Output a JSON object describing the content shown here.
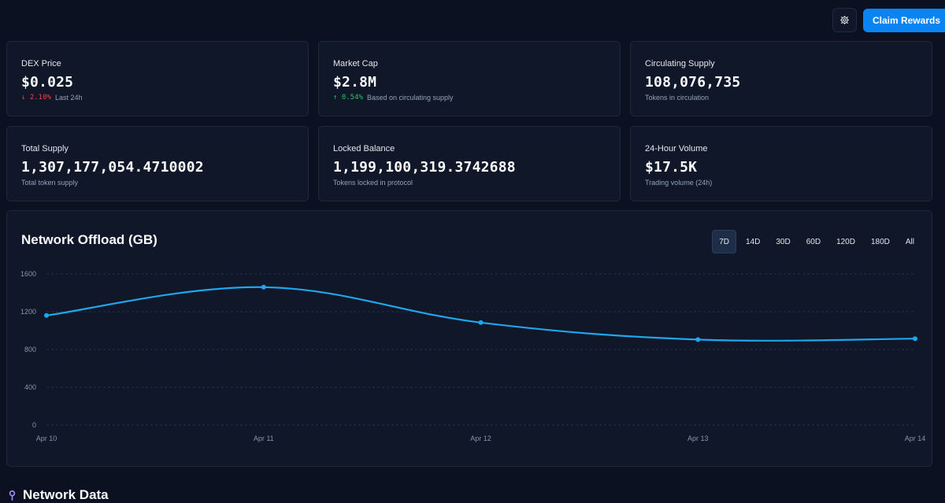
{
  "header": {
    "claim_label": "Claim Rewards",
    "settings_icon": "gear-icon",
    "accent": "#0b84f3"
  },
  "stats": [
    {
      "label": "DEX Price",
      "value": "$0.025",
      "delta": "2.10%",
      "delta_dir": "down",
      "sub": "Last 24h"
    },
    {
      "label": "Market Cap",
      "value": "$2.8M",
      "delta": "0.54%",
      "delta_dir": "up",
      "sub": "Based on circulating supply"
    },
    {
      "label": "Circulating Supply",
      "value": "108,076,735",
      "sub": "Tokens in circulation"
    },
    {
      "label": "Total Supply",
      "value": "1,307,177,054.4710002",
      "sub": "Total token supply"
    },
    {
      "label": "Locked Balance",
      "value": "1,199,100,319.3742688",
      "sub": "Tokens locked in protocol"
    },
    {
      "label": "24-Hour Volume",
      "value": "$17.5K",
      "sub": "Trading volume (24h)"
    }
  ],
  "chart_section": {
    "title": "Network Offload (GB)",
    "ranges": [
      "7D",
      "14D",
      "30D",
      "60D",
      "120D",
      "180D",
      "All"
    ],
    "active_range": "7D"
  },
  "chart_data": {
    "type": "line",
    "title": "Network Offload (GB)",
    "x": [
      "Apr 10",
      "Apr 11",
      "Apr 12",
      "Apr 13",
      "Apr 14"
    ],
    "series": [
      {
        "values": [
          1160,
          1460,
          1085,
          905,
          915
        ],
        "color": "#1ea7ec"
      }
    ],
    "yticks": [
      0,
      400,
      800,
      1200,
      1600
    ],
    "ylim": [
      0,
      1600
    ],
    "grid": true,
    "xlabel": "",
    "ylabel": ""
  },
  "next_section": {
    "title": "Network Data",
    "icon": "location-pin-icon"
  }
}
